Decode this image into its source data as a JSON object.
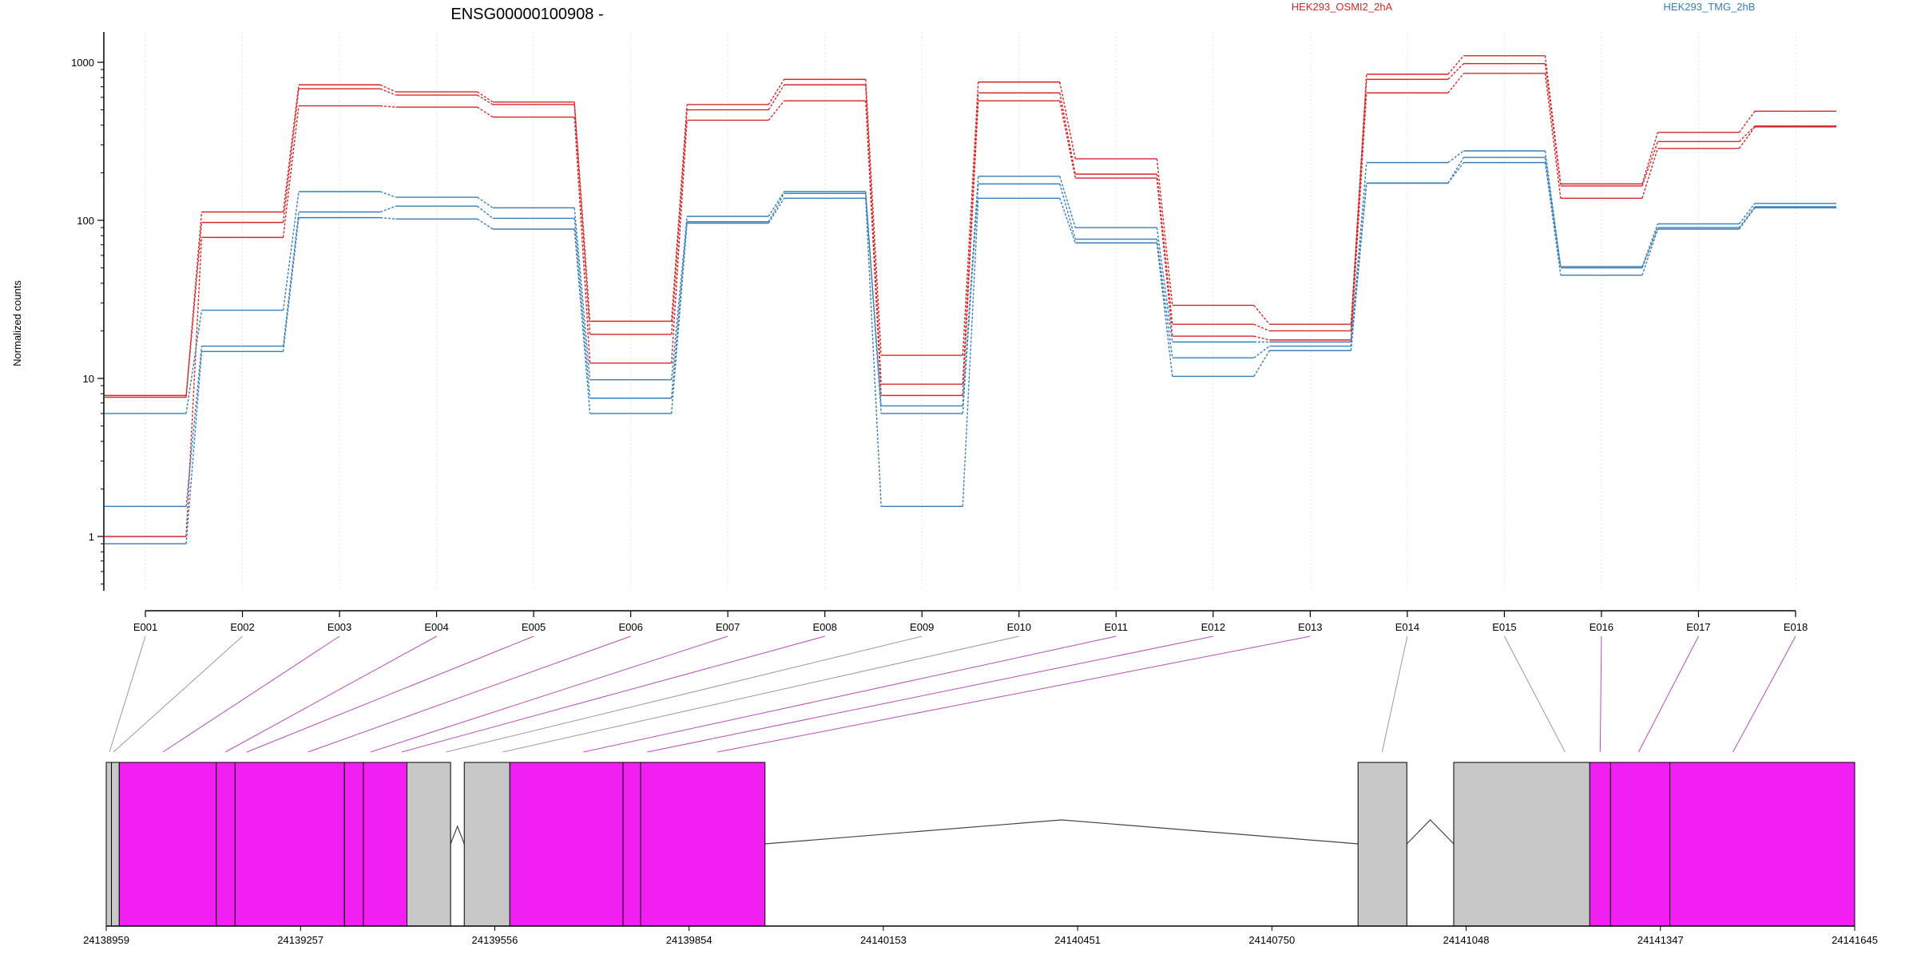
{
  "chart_data": {
    "type": "line",
    "title": "ENSG00000100908 -",
    "ylabel": "Normalized counts",
    "yscale": "log",
    "ylim": [
      0.5,
      1600
    ],
    "yticks": [
      1,
      10,
      100,
      1000
    ],
    "grid": true,
    "legend_placement": "top-right",
    "colors": {
      "red": "#d62728",
      "blue": "#377eb8",
      "exon": "#f21ff2",
      "exon_gray": "#c8c8c8",
      "link_gray": "#999999",
      "link_pink": "#b84db8"
    },
    "categories": [
      "E001",
      "E002",
      "E003",
      "E004",
      "E005",
      "E006",
      "E007",
      "E008",
      "E009",
      "E010",
      "E011",
      "E012",
      "E013",
      "E014",
      "E015",
      "E016",
      "E017",
      "E018"
    ],
    "series": [
      {
        "name": "HEK293_OSMI2_2hA",
        "color": "#d62728",
        "values": [
          7.8,
          113,
          720,
          650,
          560,
          23,
          540,
          780,
          14,
          750,
          245,
          29,
          22,
          840,
          1100,
          170,
          360,
          490
        ]
      },
      {
        "name": "",
        "color": "#d62728",
        "values": [
          7.6,
          97,
          680,
          620,
          540,
          19,
          500,
          720,
          9.2,
          640,
          196,
          22,
          20,
          780,
          980,
          165,
          315,
          395
        ]
      },
      {
        "name": "",
        "color": "#d62728",
        "values": [
          1.0,
          78,
          530,
          520,
          450,
          12.5,
          430,
          570,
          7.8,
          570,
          185,
          18.5,
          17.5,
          640,
          850,
          138,
          285,
          390
        ]
      },
      {
        "name": "HEK293_TMG_2hB",
        "color": "#377eb8",
        "values": [
          6.0,
          27,
          152,
          140,
          120,
          9.8,
          106,
          152,
          6.7,
          190,
          90,
          17,
          17,
          232,
          275,
          51,
          95,
          128
        ]
      },
      {
        "name": "",
        "color": "#377eb8",
        "values": [
          1.55,
          16,
          113,
          123,
          103,
          7.5,
          98,
          148,
          6.0,
          170,
          76,
          13.5,
          16,
          172,
          250,
          50,
          90,
          122
        ]
      },
      {
        "name": "",
        "color": "#377eb8",
        "values": [
          0.9,
          14.8,
          104,
          102,
          88,
          6.0,
          96,
          138,
          1.55,
          138,
          72,
          10.3,
          15,
          172,
          232,
          45,
          88,
          120
        ]
      }
    ],
    "legend": [
      "HEK293_OSMI2_2hA",
      "HEK293_TMG_2hB"
    ],
    "genomic_axis": {
      "range": [
        24138959,
        24141645
      ],
      "tick_labels": [
        "24138959",
        "24139257",
        "24139556",
        "24139854",
        "24140153",
        "24140451",
        "24140750",
        "24141048",
        "24141347",
        "24141645"
      ]
    },
    "exons": [
      {
        "id": "E001",
        "start": 24138959,
        "end": 24138967,
        "highlight": false
      },
      {
        "id": "E002",
        "start": 24138967,
        "end": 24138979,
        "highlight": false
      },
      {
        "id": "E003",
        "start": 24138979,
        "end": 24139128,
        "highlight": true
      },
      {
        "id": "E004",
        "start": 24139128,
        "end": 24139157,
        "highlight": true
      },
      {
        "id": "E005",
        "start": 24139157,
        "end": 24139325,
        "highlight": true
      },
      {
        "id": "E006",
        "start": 24139325,
        "end": 24139354,
        "highlight": true
      },
      {
        "id": "E007",
        "start": 24139354,
        "end": 24139421,
        "highlight": true
      },
      {
        "id": "E008",
        "start": 24139421,
        "end": 24139488,
        "highlight": false
      },
      {
        "id": "E009",
        "start": 24139509,
        "end": 24139579,
        "highlight": false
      },
      {
        "id": "E010",
        "start": 24139579,
        "end": 24139753,
        "highlight": true
      },
      {
        "id": "E011",
        "start": 24139753,
        "end": 24139780,
        "highlight": true
      },
      {
        "id": "E012",
        "start": 24139780,
        "end": 24139971,
        "highlight": true
      },
      {
        "id": "E014",
        "start": 24140882,
        "end": 24140957,
        "highlight": false
      },
      {
        "id": "E015",
        "start": 24141029,
        "end": 24141238,
        "highlight": false
      },
      {
        "id": "E016",
        "start": 24141238,
        "end": 24141270,
        "highlight": true
      },
      {
        "id": "E017",
        "start": 24141270,
        "end": 24141361,
        "highlight": true
      },
      {
        "id": "E018",
        "start": 24141361,
        "end": 24141645,
        "highlight": true
      }
    ],
    "introns": [
      {
        "start": 24139488,
        "end": 24139509
      },
      {
        "start": 24139971,
        "end": 24140882
      },
      {
        "start": 24140957,
        "end": 24141029
      }
    ],
    "connectors": [
      {
        "label": "E001",
        "target": 24138964,
        "pink": false
      },
      {
        "label": "E002",
        "target": 24138970,
        "pink": false
      },
      {
        "label": "E003",
        "target": 24139046,
        "pink": true
      },
      {
        "label": "E004",
        "target": 24139142,
        "pink": true
      },
      {
        "label": "E005",
        "target": 24139175,
        "pink": true
      },
      {
        "label": "E006",
        "target": 24139269,
        "pink": true
      },
      {
        "label": "E007",
        "target": 24139365,
        "pink": true
      },
      {
        "label": "E008",
        "target": 24139413,
        "pink": true
      },
      {
        "label": "E009",
        "target": 24139481,
        "pink": false
      },
      {
        "label": "E010",
        "target": 24139568,
        "pink": false
      },
      {
        "label": "E011",
        "target": 24139692,
        "pink": true
      },
      {
        "label": "E012",
        "target": 24139790,
        "pink": true
      },
      {
        "label": "E013",
        "target": 24139898,
        "pink": true
      },
      {
        "label": "E014",
        "target": 24140919,
        "pink": false
      },
      {
        "label": "E015",
        "target": 24141200,
        "pink": false
      },
      {
        "label": "E016",
        "target": 24141254,
        "pink": true
      },
      {
        "label": "E017",
        "target": 24141313,
        "pink": true
      },
      {
        "label": "E018",
        "target": 24141458,
        "pink": true
      }
    ]
  }
}
